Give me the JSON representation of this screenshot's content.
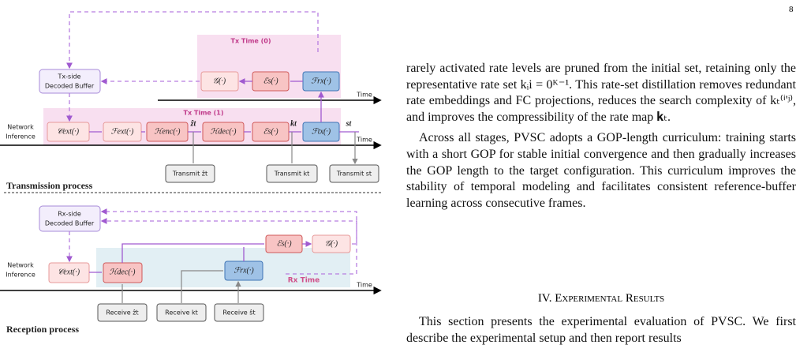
{
  "header": {
    "page_number": "8"
  },
  "figure": {
    "transmission": {
      "buffer": [
        "Tx-side",
        "Decoded Buffer"
      ],
      "time0_label": "Tx Time (0)",
      "time1_label": "Tx Time (1)",
      "time_axis_top": "Time",
      "time_axis_main": "Time",
      "network_inference": [
        "Network",
        "Inference"
      ],
      "row0": [
        "𝒢(·)",
        "ℰs(·)",
        "ℱrx(·)"
      ],
      "row1": [
        "𝒞ext(·)",
        "ℱext(·)",
        "ℋenc(·)",
        "ℋdec(·)",
        "ℰs(·)",
        "ℱtx(·)"
      ],
      "signals": [
        "ẑt",
        "kt",
        "st"
      ],
      "outputs": [
        "Transmit ẑt",
        "Transmit kt",
        "Transmit st"
      ],
      "caption": "Transmission process"
    },
    "reception": {
      "buffer": [
        "Rx-side",
        "Decoded Buffer"
      ],
      "time_label": "Rx Time",
      "time_axis": "Time",
      "network_inference": [
        "Network",
        "Inference"
      ],
      "boxes": [
        "𝒞ext(·)",
        "ℋdec(·)",
        "ℰs(·)",
        "𝒢(·)",
        "ℱrx(·)"
      ],
      "inputs": [
        "Receive ẑt",
        "Receive kt",
        "Receive ŝt"
      ],
      "caption": "Reception process"
    }
  },
  "body": {
    "paragraphs": [
      "rarely activated rate levels are pruned from the initial set, retaining only the representative rate set kᵢi = 0ᴷ⁻¹. This rate-set distillation removes redundant rate embeddings and FC projections, reduces the search complexity of kₜ⁽ⁱ'ʲ⁾, and improves the compressibility of the rate map 𝐤ₜ.",
      "Across all stages, PVSC adopts a GOP-length curriculum: training starts with a short GOP for stable initial convergence and then gradually increases the GOP length to the target configuration. This curriculum improves the stability of temporal modeling and facilitates consistent reference-buffer learning across consecutive frames."
    ],
    "section_heading": "IV. Experimental Results",
    "section_paragraph": "This section presents the experimental evaluation of PVSC. We first describe the experimental setup and then report results"
  }
}
